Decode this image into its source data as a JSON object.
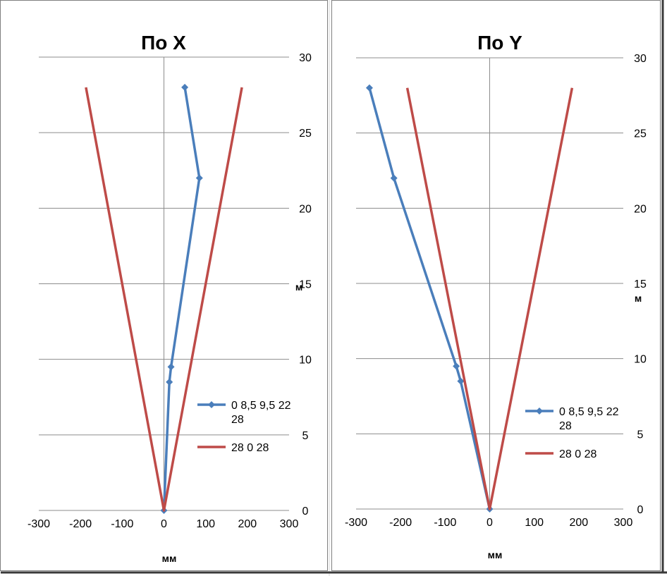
{
  "chart_data": [
    {
      "type": "line",
      "title": "По  X",
      "xlabel": "мм",
      "ylabel": "м",
      "xlim": [
        -300,
        300
      ],
      "ylim": [
        0,
        30
      ],
      "x_ticks": [
        "-300",
        "-200",
        "-100",
        "0",
        "100",
        "200",
        "300"
      ],
      "y_ticks": [
        "0",
        "5",
        "10",
        "15",
        "20",
        "25",
        "30"
      ],
      "grid": true,
      "legend_position": "right",
      "series": [
        {
          "name": "0 8,5 9,5 22 28",
          "color": "#4a7ebb",
          "markers": true,
          "x": [
            0,
            13,
            17,
            85,
            50
          ],
          "y": [
            0,
            8.5,
            9.5,
            22,
            28
          ]
        },
        {
          "name": "28 0 28",
          "color": "#be4b48",
          "markers": false,
          "x": [
            -187,
            0,
            187
          ],
          "y": [
            28,
            0,
            28
          ]
        }
      ]
    },
    {
      "type": "line",
      "title": "По Y",
      "xlabel": "мм",
      "ylabel": "м",
      "xlim": [
        -300,
        300
      ],
      "ylim": [
        0,
        30
      ],
      "x_ticks": [
        "-300",
        "-200",
        "-100",
        "0",
        "100",
        "200",
        "300"
      ],
      "y_ticks": [
        "0",
        "5",
        "10",
        "15",
        "20",
        "25",
        "30"
      ],
      "grid": true,
      "legend_position": "right",
      "series": [
        {
          "name": "0 8,5 9,5 22 28",
          "color": "#4a7ebb",
          "markers": true,
          "x": [
            0,
            -65,
            -75,
            -215,
            -270
          ],
          "y": [
            0,
            8.5,
            9.5,
            22,
            28
          ]
        },
        {
          "name": "28 0 28",
          "color": "#be4b48",
          "markers": false,
          "x": [
            -185,
            0,
            185
          ],
          "y": [
            28,
            0,
            28
          ]
        }
      ]
    }
  ]
}
